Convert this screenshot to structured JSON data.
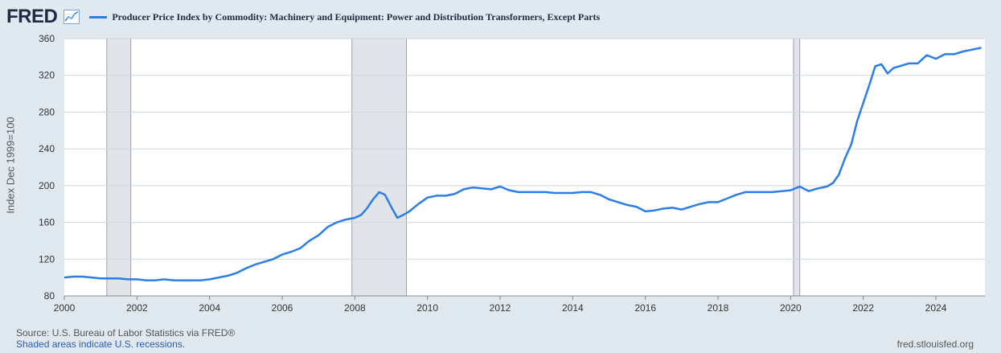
{
  "header": {
    "logo_text": "FRED",
    "logo_icon": "line-graph-icon",
    "series_title": "Producer Price Index by Commodity: Machinery and Equipment: Power and Distribution Transformers, Except Parts"
  },
  "footer": {
    "source": "Source: U.S. Bureau of Labor Statistics via FRED®",
    "recessions_note": "Shaded areas indicate U.S. recessions.",
    "site": "fred.stlouisfed.org"
  },
  "colors": {
    "line": "#2a7ee5",
    "recession": "#e1e5ea",
    "background": "#e1e9f0",
    "plot": "#ffffff"
  },
  "chart_data": {
    "type": "line",
    "title": "Producer Price Index by Commodity: Machinery and Equipment: Power and Distribution Transformers, Except Parts",
    "xlabel": "",
    "ylabel": "Index Dec 1999=100",
    "xlim": [
      2000.0,
      2025.35
    ],
    "ylim": [
      80,
      360
    ],
    "x_ticks": [
      "2000",
      "2002",
      "2004",
      "2006",
      "2008",
      "2010",
      "2012",
      "2014",
      "2016",
      "2018",
      "2020",
      "2022",
      "2024"
    ],
    "y_ticks": [
      "80",
      "120",
      "160",
      "200",
      "240",
      "280",
      "320",
      "360"
    ],
    "grid": true,
    "recessions": [
      {
        "start": 2001.17,
        "end": 2001.83
      },
      {
        "start": 2007.92,
        "end": 2009.42
      },
      {
        "start": 2020.08,
        "end": 2020.25
      }
    ],
    "series": [
      {
        "x": [
          2000.0,
          2000.25,
          2000.5,
          2000.75,
          2001.0,
          2001.25,
          2001.5,
          2001.75,
          2002.0,
          2002.25,
          2002.5,
          2002.75,
          2003.0,
          2003.25,
          2003.5,
          2003.75,
          2004.0,
          2004.25,
          2004.5,
          2004.75,
          2005.0,
          2005.25,
          2005.5,
          2005.75,
          2006.0,
          2006.25,
          2006.5,
          2006.75,
          2007.0,
          2007.25,
          2007.5,
          2007.75,
          2008.0,
          2008.17,
          2008.33,
          2008.5,
          2008.67,
          2008.83,
          2009.0,
          2009.17,
          2009.33,
          2009.5,
          2009.75,
          2010.0,
          2010.25,
          2010.5,
          2010.75,
          2011.0,
          2011.25,
          2011.5,
          2011.75,
          2012.0,
          2012.25,
          2012.5,
          2012.75,
          2013.0,
          2013.25,
          2013.5,
          2013.75,
          2014.0,
          2014.25,
          2014.5,
          2014.75,
          2015.0,
          2015.25,
          2015.5,
          2015.75,
          2016.0,
          2016.25,
          2016.5,
          2016.75,
          2017.0,
          2017.25,
          2017.5,
          2017.75,
          2018.0,
          2018.25,
          2018.5,
          2018.75,
          2019.0,
          2019.25,
          2019.5,
          2019.75,
          2020.0,
          2020.25,
          2020.5,
          2020.75,
          2021.0,
          2021.17,
          2021.33,
          2021.5,
          2021.67,
          2021.83,
          2022.0,
          2022.17,
          2022.33,
          2022.5,
          2022.67,
          2022.83,
          2023.0,
          2023.25,
          2023.5,
          2023.75,
          2024.0,
          2024.25,
          2024.5,
          2024.75,
          2025.0,
          2025.25
        ],
        "values": [
          100,
          101,
          101,
          100,
          99,
          99,
          99,
          98,
          98,
          97,
          97,
          98,
          97,
          97,
          97,
          97,
          98,
          100,
          102,
          105,
          110,
          114,
          117,
          120,
          125,
          128,
          132,
          140,
          146,
          155,
          160,
          163,
          165,
          168,
          175,
          185,
          193,
          190,
          177,
          165,
          168,
          172,
          180,
          187,
          189,
          189,
          191,
          196,
          198,
          197,
          196,
          199,
          195,
          193,
          193,
          193,
          193,
          192,
          192,
          192,
          193,
          193,
          190,
          185,
          182,
          179,
          177,
          172,
          173,
          175,
          176,
          174,
          177,
          180,
          182,
          182,
          186,
          190,
          193,
          193,
          193,
          193,
          194,
          195,
          199,
          194,
          197,
          199,
          203,
          212,
          230,
          245,
          270,
          290,
          310,
          330,
          332,
          322,
          328,
          330,
          333,
          333,
          342,
          338,
          343,
          343,
          346,
          348,
          350
        ]
      }
    ]
  }
}
